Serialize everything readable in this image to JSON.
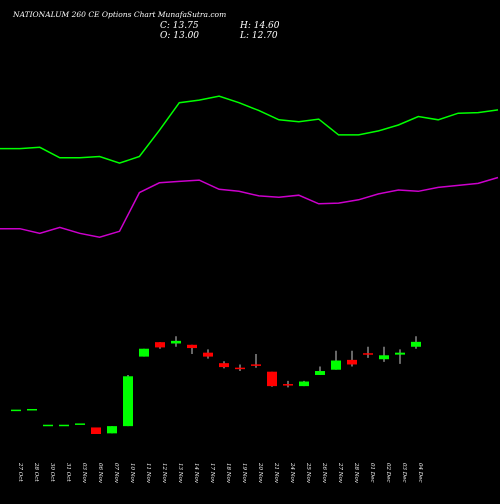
{
  "header": {
    "title": "NATIONALUM 260  CE Options  Chart MunafaSutra.com",
    "ohlc": {
      "close": "C: 13.75",
      "high": "H: 14.60",
      "open": "O: 13.00",
      "low": "L: 12.70"
    }
  },
  "colors": {
    "background": "#000000",
    "bullish": "#00ff00",
    "bearish": "#ff0000",
    "upper_band": "#00ff00",
    "lower_band": "#cc00cc",
    "text": "#ffffff"
  },
  "chart_data": {
    "type": "candlestick",
    "title": "NATIONALUM 260  CE Options  Chart MunafaSutra.com",
    "categories": [
      "27 Oct",
      "28 Oct",
      "30 Oct",
      "31 Oct",
      "03 Nov",
      "06 Nov",
      "07 Nov",
      "10 Nov",
      "11 Nov",
      "12 Nov",
      "13 Nov",
      "14 Nov",
      "17 Nov",
      "18 Nov",
      "19 Nov",
      "20 Nov",
      "21 Nov",
      "24 Nov",
      "25 Nov",
      "26 Nov",
      "27 Nov",
      "28 Nov",
      "01 Dec",
      "02 Dec",
      "03 Dec",
      "04 Dec"
    ],
    "candles": [
      {
        "o": 3.3,
        "h": 3.3,
        "l": 3.3,
        "c": 3.3,
        "dir": "up"
      },
      {
        "o": 3.4,
        "h": 3.4,
        "l": 3.4,
        "c": 3.4,
        "dir": "up"
      },
      {
        "o": 1.0,
        "h": 1.0,
        "l": 1.0,
        "c": 1.0,
        "dir": "up"
      },
      {
        "o": 1.0,
        "h": 1.0,
        "l": 1.0,
        "c": 1.0,
        "dir": "up"
      },
      {
        "o": 1.2,
        "h": 1.2,
        "l": 1.2,
        "c": 1.2,
        "dir": "up"
      },
      {
        "o": 0.7,
        "h": 0.7,
        "l": -0.3,
        "c": -0.3,
        "dir": "down"
      },
      {
        "o": -0.2,
        "h": 0.9,
        "l": -0.2,
        "c": 0.9,
        "dir": "up"
      },
      {
        "o": 0.9,
        "h": 8.7,
        "l": 0.9,
        "c": 8.5,
        "dir": "up"
      },
      {
        "o": 11.5,
        "h": 12.7,
        "l": 11.5,
        "c": 12.7,
        "dir": "up"
      },
      {
        "o": 13.7,
        "h": 13.7,
        "l": 12.7,
        "c": 12.9,
        "dir": "down"
      },
      {
        "o": 13.5,
        "h": 14.6,
        "l": 13.0,
        "c": 13.9,
        "dir": "up"
      },
      {
        "o": 13.3,
        "h": 13.3,
        "l": 11.9,
        "c": 12.8,
        "dir": "down"
      },
      {
        "o": 12.1,
        "h": 12.6,
        "l": 11.2,
        "c": 11.5,
        "dir": "down"
      },
      {
        "o": 10.5,
        "h": 10.8,
        "l": 9.7,
        "c": 9.9,
        "dir": "down"
      },
      {
        "o": 9.7,
        "h": 10.3,
        "l": 9.3,
        "c": 9.5,
        "dir": "down"
      },
      {
        "o": 10.2,
        "h": 11.9,
        "l": 9.8,
        "c": 10.1,
        "dir": "down"
      },
      {
        "o": 9.2,
        "h": 9.2,
        "l": 6.9,
        "c": 7.0,
        "dir": "down"
      },
      {
        "o": 7.2,
        "h": 7.8,
        "l": 6.8,
        "c": 7.0,
        "dir": "down"
      },
      {
        "o": 7.0,
        "h": 7.8,
        "l": 7.0,
        "c": 7.7,
        "dir": "up"
      },
      {
        "o": 8.7,
        "h": 10.0,
        "l": 8.7,
        "c": 9.3,
        "dir": "up"
      },
      {
        "o": 9.5,
        "h": 12.4,
        "l": 9.5,
        "c": 10.9,
        "dir": "up"
      },
      {
        "o": 11.0,
        "h": 12.4,
        "l": 10.0,
        "c": 10.3,
        "dir": "down"
      },
      {
        "o": 11.9,
        "h": 13.0,
        "l": 11.3,
        "c": 11.7,
        "dir": "down"
      },
      {
        "o": 11.1,
        "h": 13.0,
        "l": 10.7,
        "c": 11.7,
        "dir": "up"
      },
      {
        "o": 11.8,
        "h": 12.6,
        "l": 10.4,
        "c": 12.1,
        "dir": "up"
      },
      {
        "o": 13.0,
        "h": 14.6,
        "l": 12.7,
        "c": 13.75,
        "dir": "up"
      }
    ],
    "upper_band": [
      43.2,
      43.2,
      43.4,
      41.8,
      41.8,
      42.0,
      41.0,
      42.0,
      46.0,
      50.2,
      50.6,
      51.2,
      50.2,
      49.0,
      47.6,
      47.3,
      47.7,
      45.3,
      45.3,
      45.9,
      46.8,
      48.1,
      47.6,
      48.6,
      48.7,
      49.1
    ],
    "lower_band": [
      31.0,
      31.0,
      30.3,
      31.2,
      30.3,
      29.7,
      30.6,
      36.5,
      38.0,
      38.2,
      38.4,
      37.0,
      36.7,
      36.0,
      35.8,
      36.1,
      34.8,
      34.9,
      35.4,
      36.3,
      36.9,
      36.7,
      37.3,
      37.6,
      37.9,
      38.8
    ],
    "ylim": [
      -3.5,
      59
    ]
  }
}
